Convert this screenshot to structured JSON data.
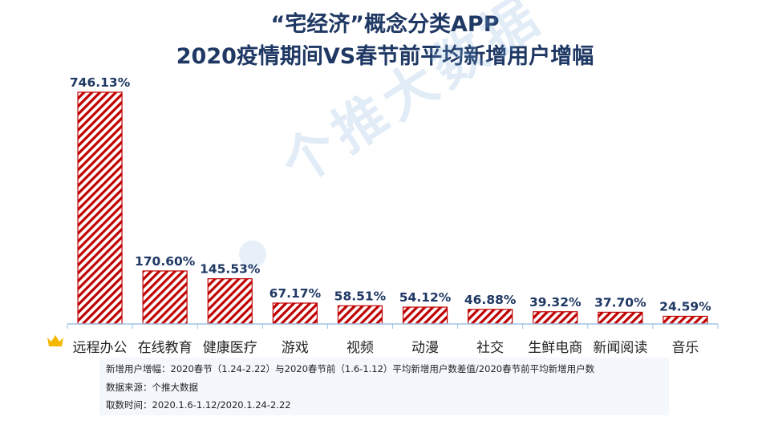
{
  "header": {
    "title_line1": "“宅经济”概念分类APP",
    "title_line2": "2020疫情期间VS春节前平均新增用户增幅"
  },
  "watermark": "个推大数据",
  "notes": {
    "definition": "新增用户增幅：2020春节（1.24-2.22）与2020春节前（1.6-1.12）平均新增用户数差值/2020春节前平均新增用户数",
    "source": "数据来源：个推大数据",
    "period": "取数时间：2020.1.6-1.12/2020.1.24-2.22"
  },
  "chart_data": {
    "type": "bar",
    "title": "“宅经济”概念分类APP 2020疫情期间VS春节前平均新增用户增幅",
    "categories": [
      "远程办公",
      "在线教育",
      "健康医疗",
      "游戏",
      "视频",
      "动漫",
      "社交",
      "生鲜电商",
      "新闻阅读",
      "音乐"
    ],
    "values": [
      746.13,
      170.6,
      145.53,
      67.17,
      58.51,
      54.12,
      46.88,
      39.32,
      37.7,
      24.59
    ],
    "value_labels": [
      "746.13%",
      "170.60%",
      "145.53%",
      "67.17%",
      "58.51%",
      "54.12%",
      "46.88%",
      "39.32%",
      "37.70%",
      "24.59%"
    ],
    "unit": "%",
    "ylim": [
      0,
      760
    ],
    "grid": false,
    "legend": "none",
    "bar_fill": "hatched diagonal stripes",
    "colors": {
      "bar": "#c00000",
      "label": "#1f3864",
      "axis": "#9dc3e6",
      "crown": "#f5b800"
    }
  }
}
